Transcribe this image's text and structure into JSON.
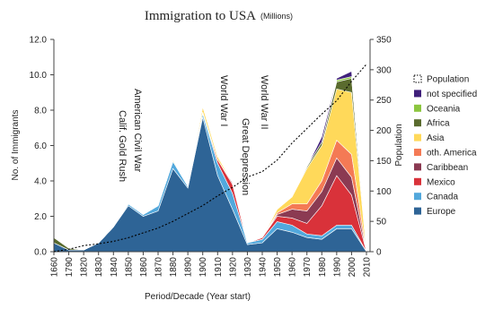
{
  "chart_data": {
    "type": "stacked-area",
    "title": "Immigration to USA",
    "subtitle": "(Millions)",
    "x_label": "Period/Decade (Year start)",
    "y_label": "No. of Immigrants",
    "y2_label": "Population",
    "categories": [
      "1660",
      "1790",
      "1820",
      "1830",
      "1840",
      "1850",
      "1860",
      "1870",
      "1880",
      "1890",
      "1900",
      "1910",
      "1920",
      "1930",
      "1940",
      "1950",
      "1960",
      "1970",
      "1980",
      "1990",
      "2000",
      "2010"
    ],
    "series": [
      {
        "name": "Europe",
        "color": "#2e6496",
        "values": [
          0.5,
          0.1,
          0.1,
          0.5,
          1.4,
          2.6,
          2.0,
          2.3,
          4.7,
          3.6,
          7.6,
          4.3,
          2.4,
          0.4,
          0.5,
          1.3,
          1.1,
          0.8,
          0.7,
          1.3,
          1.3,
          0
        ]
      },
      {
        "name": "Canada",
        "color": "#52a8dc",
        "values": [
          0,
          0,
          0,
          0,
          0,
          0.1,
          0.1,
          0.3,
          0.4,
          0.1,
          0.2,
          0.7,
          0.9,
          0.1,
          0.2,
          0.4,
          0.4,
          0.2,
          0.2,
          0.2,
          0.2,
          0
        ]
      },
      {
        "name": "Mexico",
        "color": "#d9323a",
        "values": [
          0,
          0,
          0,
          0,
          0,
          0,
          0,
          0,
          0,
          0,
          0,
          0.2,
          0.5,
          0,
          0.1,
          0.3,
          0.4,
          0.6,
          1.7,
          2.8,
          1.7,
          0
        ]
      },
      {
        "name": "Caribbean",
        "color": "#8b3a52",
        "values": [
          0,
          0,
          0,
          0,
          0,
          0,
          0,
          0,
          0,
          0,
          0.1,
          0,
          0.1,
          0,
          0,
          0.1,
          0.5,
          0.7,
          0.8,
          1.0,
          1.0,
          0
        ]
      },
      {
        "name": "oth. America",
        "color": "#f47a55",
        "values": [
          0,
          0,
          0,
          0,
          0,
          0,
          0,
          0,
          0,
          0,
          0,
          0,
          0,
          0,
          0,
          0.1,
          0.3,
          0.4,
          0.6,
          1.0,
          1.3,
          0
        ]
      },
      {
        "name": "Asia",
        "color": "#ffd95a",
        "values": [
          0,
          0,
          0,
          0,
          0,
          0,
          0,
          0,
          0.1,
          0,
          0.3,
          0.2,
          0,
          0,
          0,
          0.2,
          0.4,
          2.0,
          2.0,
          2.9,
          3.5,
          0
        ]
      },
      {
        "name": "Africa",
        "color": "#5a6b2e",
        "values": [
          0.3,
          0.1,
          0,
          0,
          0,
          0,
          0,
          0,
          0,
          0,
          0,
          0,
          0,
          0,
          0,
          0,
          0,
          0.1,
          0.2,
          0.4,
          0.8,
          0
        ]
      },
      {
        "name": "Oceania",
        "color": "#8cc63f",
        "values": [
          0,
          0,
          0,
          0,
          0,
          0,
          0,
          0,
          0,
          0,
          0,
          0,
          0,
          0,
          0,
          0,
          0,
          0,
          0,
          0.1,
          0.1,
          0
        ]
      },
      {
        "name": "not specified",
        "color": "#3f1f7a",
        "values": [
          0,
          0,
          0,
          0,
          0,
          0,
          0,
          0,
          0,
          0,
          0,
          0,
          0,
          0,
          0,
          0,
          0,
          0,
          0.3,
          0.1,
          0.3,
          0
        ]
      },
      {
        "name": "Population",
        "color": "#000000",
        "axis": "y2",
        "values": [
          0,
          4,
          10,
          13,
          17,
          23,
          31,
          39,
          50,
          63,
          76,
          92,
          106,
          123,
          132,
          151,
          179,
          203,
          227,
          249,
          281,
          309
        ]
      }
    ],
    "ylim": [
      0,
      12
    ],
    "yticks": [
      {
        "value": 0,
        "label": "0.0"
      },
      {
        "value": 2,
        "label": "2.0"
      },
      {
        "value": 4,
        "label": "4.0"
      },
      {
        "value": 6,
        "label": "6.0"
      },
      {
        "value": 8,
        "label": "8.0"
      },
      {
        "value": 10,
        "label": "10.0"
      },
      {
        "value": 12,
        "label": "12.0"
      }
    ],
    "y2lim": [
      0,
      350
    ],
    "y2ticks": [
      0,
      50,
      100,
      150,
      200,
      250,
      300,
      350
    ],
    "annotations": [
      "Calif. Gold Rush",
      "American Civil War",
      "World War I",
      "Great Depression",
      "World War II"
    ],
    "annotation_color": "#1a1aa8"
  }
}
